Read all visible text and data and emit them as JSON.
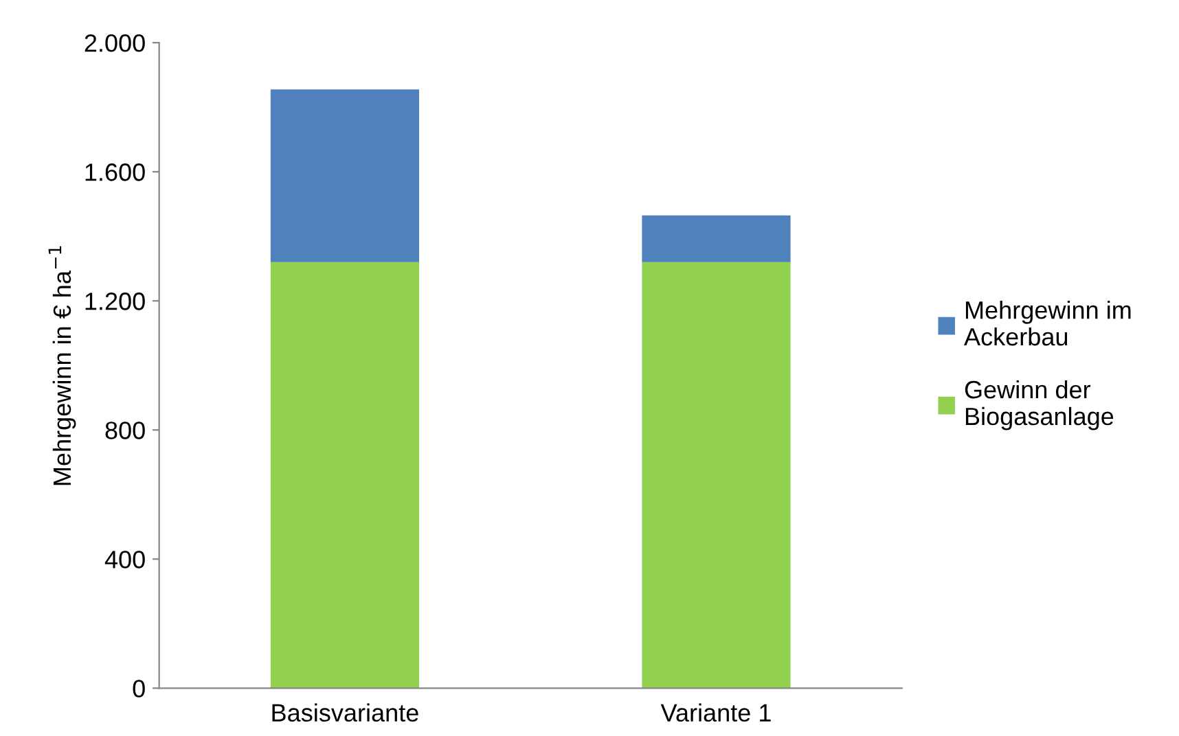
{
  "chart_data": {
    "type": "bar",
    "stacked": true,
    "ylabel": "Mehrgewinn in € ha$^{−1}$",
    "categories": [
      "Basisvariante",
      "Variante 1"
    ],
    "series": [
      {
        "name": "Gewinn der\nBiogasanlage",
        "color": "#92d050",
        "values": [
          1320,
          1320
        ]
      },
      {
        "name": "Mehrgewinn im\nAckerbau",
        "color": "#4f81bd",
        "values": [
          535,
          145
        ]
      }
    ],
    "ylim": [
      0,
      2000
    ],
    "yticks": [
      0,
      400,
      800,
      {
        "value": 1200,
        "label": "1.200"
      },
      {
        "value": 1600,
        "label": "1.600"
      },
      {
        "value": 2000,
        "label": "2.000"
      }
    ],
    "grid": false,
    "legend": "right"
  }
}
